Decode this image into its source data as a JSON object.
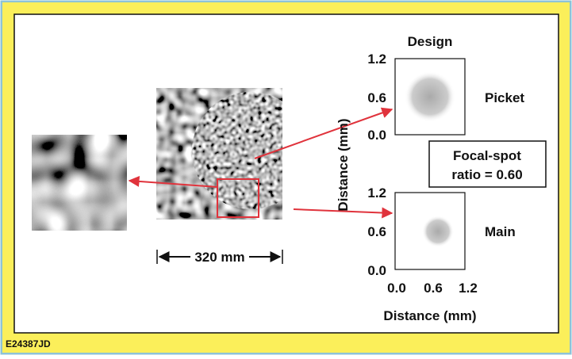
{
  "header": {
    "title": "Design"
  },
  "picket": {
    "label": "Picket",
    "yticks": [
      "1.2",
      "0.6",
      "0.0"
    ]
  },
  "main": {
    "label": "Main",
    "yticks": [
      "1.2",
      "0.6",
      "0.0"
    ],
    "xticks": [
      "0.0",
      "0.6",
      "1.2"
    ]
  },
  "y_axis_label": "Distance (mm)",
  "x_axis_label": "Distance (mm)",
  "ratio_box": {
    "lines": [
      "Focal-spot",
      "ratio = 0.60"
    ]
  },
  "scale_label": "320 mm",
  "figure_id": "E24387JD"
}
